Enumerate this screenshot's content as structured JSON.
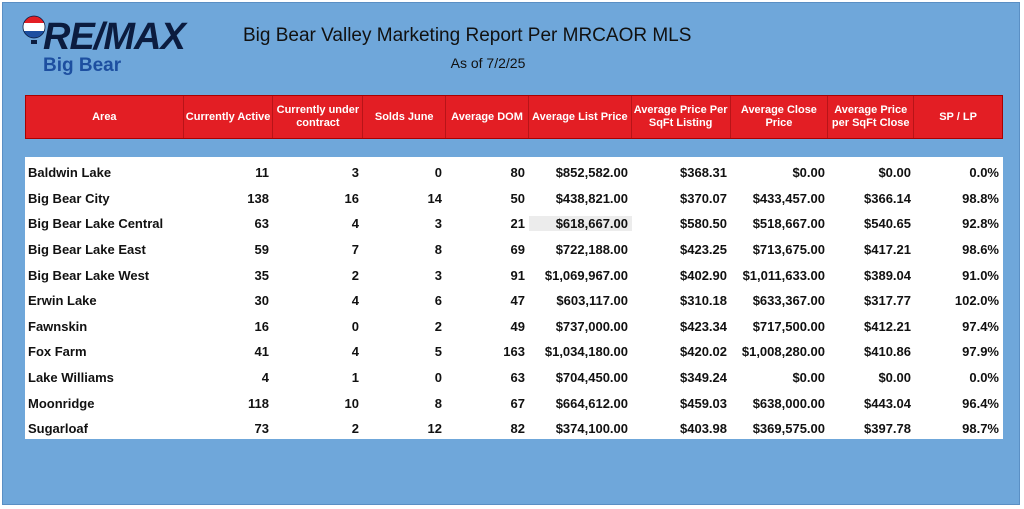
{
  "brand": {
    "logo_text": "RE/MAX",
    "logo_sub": "Big Bear",
    "colors": {
      "red": "#e31e24",
      "blue": "#1d4fa0",
      "navy": "#0b1c3f",
      "panel": "#6fa7da"
    }
  },
  "report": {
    "title": "Big Bear Valley Marketing Report Per MRCAOR MLS",
    "as_of": "As of 7/2/25"
  },
  "table": {
    "headers": [
      "Area",
      "Currently Active",
      "Currently under contract",
      "Solds June",
      "Average DOM",
      "Average List Price",
      "Average Price Per SqFt Listing",
      "Average Close Price",
      "Average Price per SqFt Close",
      "SP / LP"
    ],
    "rows": [
      [
        "Baldwin Lake",
        "11",
        "3",
        "0",
        "80",
        "$852,582.00",
        "$368.31",
        "$0.00",
        "$0.00",
        "0.0%"
      ],
      [
        "Big Bear City",
        "138",
        "16",
        "14",
        "50",
        "$438,821.00",
        "$370.07",
        "$433,457.00",
        "$366.14",
        "98.8%"
      ],
      [
        "Big Bear Lake Central",
        "63",
        "4",
        "3",
        "21",
        "$618,667.00",
        "$580.50",
        "$518,667.00",
        "$540.65",
        "92.8%"
      ],
      [
        "Big Bear Lake East",
        "59",
        "7",
        "8",
        "69",
        "$722,188.00",
        "$423.25",
        "$713,675.00",
        "$417.21",
        "98.6%"
      ],
      [
        "Big Bear Lake West",
        "35",
        "2",
        "3",
        "91",
        "$1,069,967.00",
        "$402.90",
        "$1,011,633.00",
        "$389.04",
        "91.0%"
      ],
      [
        "Erwin Lake",
        "30",
        "4",
        "6",
        "47",
        "$603,117.00",
        "$310.18",
        "$633,367.00",
        "$317.77",
        "102.0%"
      ],
      [
        "Fawnskin",
        "16",
        "0",
        "2",
        "49",
        "$737,000.00",
        "$423.34",
        "$717,500.00",
        "$412.21",
        "97.4%"
      ],
      [
        "Fox Farm",
        "41",
        "4",
        "5",
        "163",
        "$1,034,180.00",
        "$420.02",
        "$1,008,280.00",
        "$410.86",
        "97.9%"
      ],
      [
        "Lake Williams",
        "4",
        "1",
        "0",
        "63",
        "$704,450.00",
        "$349.24",
        "$0.00",
        "$0.00",
        "0.0%"
      ],
      [
        "Moonridge",
        "118",
        "10",
        "8",
        "67",
        "$664,612.00",
        "$459.03",
        "$638,000.00",
        "$443.04",
        "96.4%"
      ],
      [
        "Sugarloaf",
        "73",
        "2",
        "12",
        "82",
        "$374,100.00",
        "$403.98",
        "$369,575.00",
        "$397.78",
        "98.7%"
      ]
    ]
  }
}
